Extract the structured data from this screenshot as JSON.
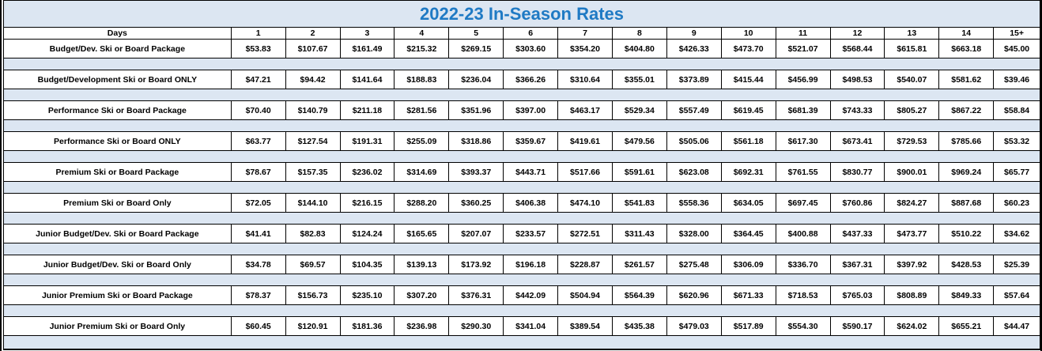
{
  "title": "2022-23 In-Season Rates",
  "header": {
    "label": "Days",
    "days": [
      "1",
      "2",
      "3",
      "4",
      "5",
      "6",
      "7",
      "8",
      "9",
      "10",
      "11",
      "12",
      "13",
      "14",
      "15+"
    ]
  },
  "rows": [
    {
      "name": "Budget/Dev. Ski or Board Package",
      "prices": [
        "$53.83",
        "$107.67",
        "$161.49",
        "$215.32",
        "$269.15",
        "$303.60",
        "$354.20",
        "$404.80",
        "$426.33",
        "$473.70",
        "$521.07",
        "$568.44",
        "$615.81",
        "$663.18",
        "$45.00"
      ]
    },
    {
      "name": "Budget/Development Ski or Board ONLY",
      "prices": [
        "$47.21",
        "$94.42",
        "$141.64",
        "$188.83",
        "$236.04",
        "$366.26",
        "$310.64",
        "$355.01",
        "$373.89",
        "$415.44",
        "$456.99",
        "$498.53",
        "$540.07",
        "$581.62",
        "$39.46"
      ]
    },
    {
      "name": "Performance Ski or Board Package",
      "prices": [
        "$70.40",
        "$140.79",
        "$211.18",
        "$281.56",
        "$351.96",
        "$397.00",
        "$463.17",
        "$529.34",
        "$557.49",
        "$619.45",
        "$681.39",
        "$743.33",
        "$805.27",
        "$867.22",
        "$58.84"
      ]
    },
    {
      "name": "Performance Ski or Board ONLY",
      "prices": [
        "$63.77",
        "$127.54",
        "$191.31",
        "$255.09",
        "$318.86",
        "$359.67",
        "$419.61",
        "$479.56",
        "$505.06",
        "$561.18",
        "$617.30",
        "$673.41",
        "$729.53",
        "$785.66",
        "$53.32"
      ]
    },
    {
      "name": "Premium Ski or Board Package",
      "prices": [
        "$78.67",
        "$157.35",
        "$236.02",
        "$314.69",
        "$393.37",
        "$443.71",
        "$517.66",
        "$591.61",
        "$623.08",
        "$692.31",
        "$761.55",
        "$830.77",
        "$900.01",
        "$969.24",
        "$65.77"
      ]
    },
    {
      "name": "Premium Ski or Board Only",
      "prices": [
        "$72.05",
        "$144.10",
        "$216.15",
        "$288.20",
        "$360.25",
        "$406.38",
        "$474.10",
        "$541.83",
        "$558.36",
        "$634.05",
        "$697.45",
        "$760.86",
        "$824.27",
        "$887.68",
        "$60.23"
      ]
    },
    {
      "name": "Junior Budget/Dev. Ski or Board Package",
      "prices": [
        "$41.41",
        "$82.83",
        "$124.24",
        "$165.65",
        "$207.07",
        "$233.57",
        "$272.51",
        "$311.43",
        "$328.00",
        "$364.45",
        "$400.88",
        "$437.33",
        "$473.77",
        "$510.22",
        "$34.62"
      ]
    },
    {
      "name": "Junior Budget/Dev. Ski or Board Only",
      "prices": [
        "$34.78",
        "$69.57",
        "$104.35",
        "$139.13",
        "$173.92",
        "$196.18",
        "$228.87",
        "$261.57",
        "$275.48",
        "$306.09",
        "$336.70",
        "$367.31",
        "$397.92",
        "$428.53",
        "$25.39"
      ]
    },
    {
      "name": "Junior Premium Ski or Board Package",
      "prices": [
        "$78.37",
        "$156.73",
        "$235.10",
        "$307.20",
        "$376.31",
        "$442.09",
        "$504.94",
        "$564.39",
        "$620.96",
        "$671.33",
        "$718.53",
        "$765.03",
        "$808.89",
        "$849.33",
        "$57.64"
      ]
    },
    {
      "name": "Junior Premium Ski or Board Only",
      "prices": [
        "$60.45",
        "$120.91",
        "$181.36",
        "$236.98",
        "$290.30",
        "$341.04",
        "$389.54",
        "$435.38",
        "$479.03",
        "$517.89",
        "$554.30",
        "$590.17",
        "$624.02",
        "$655.21",
        "$44.47"
      ]
    }
  ]
}
